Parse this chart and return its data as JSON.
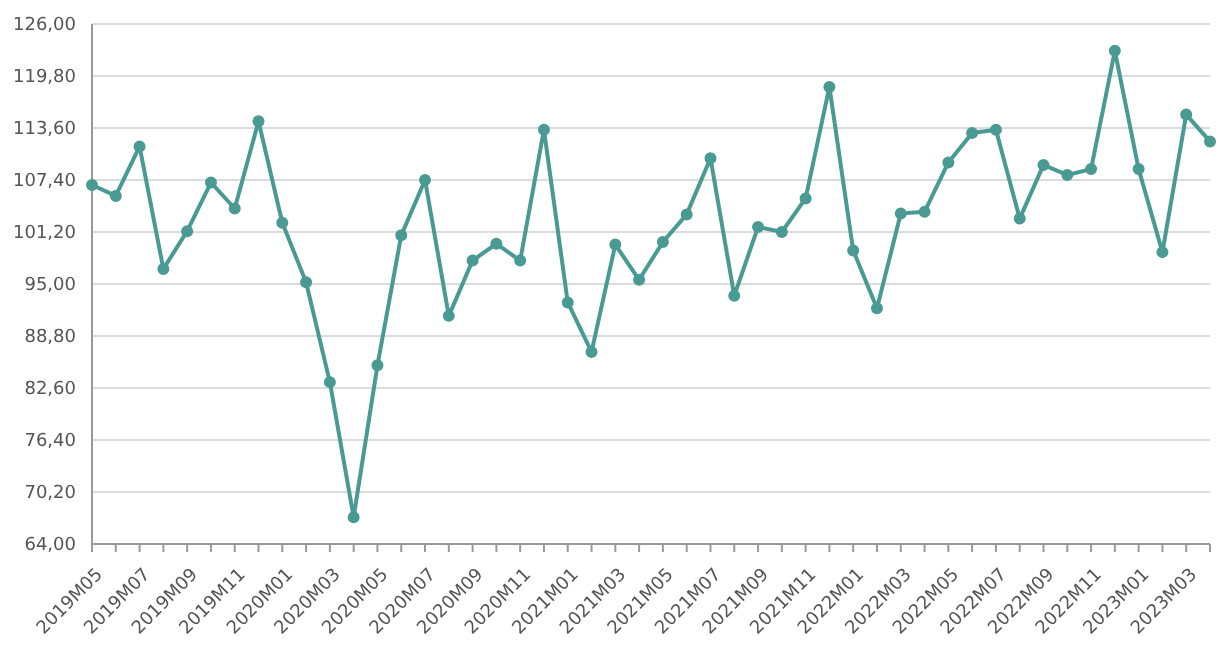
{
  "chart_data": {
    "type": "line",
    "categories": [
      "2019M05",
      null,
      "2019M07",
      null,
      "2019M09",
      null,
      "2019M11",
      null,
      "2020M01",
      null,
      "2020M03",
      null,
      "2020M05",
      null,
      "2020M07",
      null,
      "2020M09",
      null,
      "2020M11",
      null,
      "2021M01",
      null,
      "2021M03",
      null,
      "2021M05",
      null,
      "2021M07",
      null,
      "2021M09",
      null,
      "2021M11",
      null,
      "2022M01",
      null,
      "2022M03",
      null,
      "2022M05",
      null,
      "2022M07",
      null,
      "2022M09",
      null,
      "2022M11",
      null,
      "2023M01",
      null,
      "2023M03",
      null
    ],
    "series": [
      {
        "color": "#4a9a94",
        "values": [
          106.8,
          105.5,
          111.4,
          96.8,
          101.3,
          107.1,
          104.0,
          114.4,
          102.3,
          95.2,
          83.3,
          67.2,
          85.3,
          100.8,
          107.4,
          91.2,
          97.8,
          99.8,
          97.8,
          113.4,
          92.8,
          86.9,
          99.7,
          95.5,
          100.0,
          103.3,
          110.0,
          93.6,
          101.8,
          101.2,
          105.2,
          118.5,
          99.0,
          92.1,
          103.4,
          103.6,
          109.5,
          113.0,
          113.4,
          102.8,
          109.2,
          108.0,
          108.7,
          122.8,
          108.7,
          98.8,
          115.2,
          112.0
        ]
      }
    ],
    "ylim": [
      64,
      126
    ],
    "yticks": [
      {
        "value": 64,
        "label": "64,00"
      },
      {
        "value": 70.2,
        "label": "70,20"
      },
      {
        "value": 76.4,
        "label": "76,40"
      },
      {
        "value": 82.6,
        "label": "82,60"
      },
      {
        "value": 88.8,
        "label": "88,80"
      },
      {
        "value": 95,
        "label": "95,00"
      },
      {
        "value": 101.2,
        "label": "101,20"
      },
      {
        "value": 107.4,
        "label": "107,40"
      },
      {
        "value": 113.6,
        "label": "113,60"
      },
      {
        "value": 119.8,
        "label": "119,80"
      },
      {
        "value": 126,
        "label": "126,00"
      }
    ],
    "grid": "y",
    "legend": false,
    "marker": "circle",
    "line_style": "solid"
  }
}
